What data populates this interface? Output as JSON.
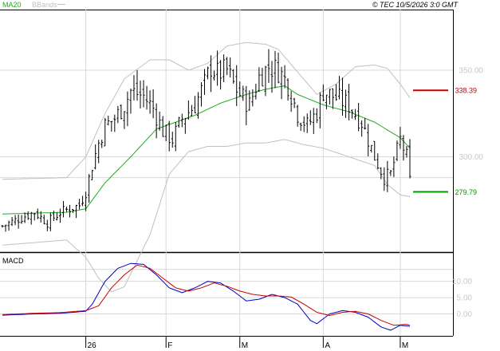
{
  "header": {
    "legend_ma": "MA20",
    "legend_bb": "BBands",
    "copyright": "© TEC 10/5/2026 3:0 GMT"
  },
  "colors": {
    "price_bar": "#000000",
    "ma20": "#22aa22",
    "bbands": "#c0c0c0",
    "macd_line": "#0000cc",
    "signal_line": "#cc0000",
    "resistance": "#cc0000",
    "support": "#009900",
    "grid": "#d8d8d8"
  },
  "chart_data": [
    {
      "type": "ohlc",
      "panel": "price",
      "y_ticks": [
        {
          "value": 300,
          "label": "300.00"
        },
        {
          "value": 350,
          "label": "350.00"
        }
      ],
      "ylim": [
        245,
        385
      ],
      "x_ticks": [
        {
          "index": 26,
          "label": "26"
        },
        {
          "index": 51,
          "label": "F"
        },
        {
          "index": 74,
          "label": "M"
        },
        {
          "index": 100,
          "label": "A"
        },
        {
          "index": 124,
          "label": "M"
        }
      ],
      "n_bars": 128,
      "levels": [
        {
          "name": "resistance",
          "value": 338.39,
          "label": "338.39"
        },
        {
          "name": "support",
          "value": 279.79,
          "label": "279.79"
        }
      ],
      "series": [
        {
          "name": "MA20",
          "anchors": [
            [
              0,
              267
            ],
            [
              20,
              268
            ],
            [
              26,
              270
            ],
            [
              32,
              285
            ],
            [
              40,
              300
            ],
            [
              48,
              316
            ],
            [
              54,
              320
            ],
            [
              60,
              324
            ],
            [
              68,
              331
            ],
            [
              76,
              336
            ],
            [
              82,
              339
            ],
            [
              88,
              341
            ],
            [
              92,
              336
            ],
            [
              100,
              330
            ],
            [
              108,
              326
            ],
            [
              116,
              320
            ],
            [
              124,
              311
            ],
            [
              127,
              305
            ]
          ]
        },
        {
          "name": "BBands upper",
          "anchors": [
            [
              0,
              287
            ],
            [
              20,
              288
            ],
            [
              26,
              300
            ],
            [
              32,
              325
            ],
            [
              38,
              345
            ],
            [
              46,
              356
            ],
            [
              52,
              356
            ],
            [
              58,
              350
            ],
            [
              64,
              354
            ],
            [
              70,
              364
            ],
            [
              76,
              366
            ],
            [
              82,
              365
            ],
            [
              86,
              362
            ],
            [
              92,
              349
            ],
            [
              98,
              336
            ],
            [
              104,
              342
            ],
            [
              110,
              352
            ],
            [
              116,
              353
            ],
            [
              120,
              351
            ],
            [
              124,
              342
            ],
            [
              127,
              334
            ]
          ]
        },
        {
          "name": "BBands lower",
          "anchors": [
            [
              0,
              249
            ],
            [
              20,
              252
            ],
            [
              26,
              242
            ],
            [
              30,
              230
            ],
            [
              34,
              222
            ],
            [
              38,
              225
            ],
            [
              46,
              255
            ],
            [
              52,
              290
            ],
            [
              58,
              303
            ],
            [
              64,
              306
            ],
            [
              70,
              306
            ],
            [
              76,
              308
            ],
            [
              82,
              308
            ],
            [
              88,
              310
            ],
            [
              94,
              307
            ],
            [
              100,
              305
            ],
            [
              108,
              300
            ],
            [
              116,
              295
            ],
            [
              120,
              284
            ],
            [
              124,
              278
            ],
            [
              127,
              277
            ]
          ]
        }
      ],
      "close_anchors": [
        [
          0,
          260
        ],
        [
          6,
          265
        ],
        [
          10,
          268
        ],
        [
          14,
          262
        ],
        [
          18,
          268
        ],
        [
          24,
          272
        ],
        [
          26,
          280
        ],
        [
          28,
          295
        ],
        [
          30,
          308
        ],
        [
          32,
          318
        ],
        [
          35,
          322
        ],
        [
          38,
          330
        ],
        [
          40,
          338
        ],
        [
          44,
          335
        ],
        [
          47,
          328
        ],
        [
          50,
          315
        ],
        [
          53,
          310
        ],
        [
          56,
          322
        ],
        [
          60,
          330
        ],
        [
          63,
          342
        ],
        [
          65,
          352
        ],
        [
          67,
          348
        ],
        [
          70,
          350
        ],
        [
          72,
          342
        ],
        [
          74,
          336
        ],
        [
          77,
          330
        ],
        [
          80,
          346
        ],
        [
          83,
          352
        ],
        [
          86,
          350
        ],
        [
          89,
          342
        ],
        [
          92,
          325
        ],
        [
          95,
          318
        ],
        [
          98,
          326
        ],
        [
          100,
          338
        ],
        [
          104,
          334
        ],
        [
          108,
          330
        ],
        [
          112,
          320
        ],
        [
          116,
          300
        ],
        [
          119,
          288
        ],
        [
          121,
          290
        ],
        [
          124,
          310
        ],
        [
          126,
          300
        ],
        [
          127,
          286
        ]
      ]
    },
    {
      "type": "line",
      "panel": "macd",
      "title": "MACD",
      "y_ticks": [
        {
          "value": 10,
          "label": "10.00"
        },
        {
          "value": 5,
          "label": "5.00"
        },
        {
          "value": 0,
          "label": "0.00"
        }
      ],
      "ylim": [
        -6,
        18
      ],
      "series": [
        {
          "name": "MACD",
          "anchors": [
            [
              0,
              -0.4
            ],
            [
              10,
              0.0
            ],
            [
              18,
              0.2
            ],
            [
              26,
              0.8
            ],
            [
              28,
              3
            ],
            [
              32,
              10
            ],
            [
              36,
              14
            ],
            [
              40,
              15.5
            ],
            [
              44,
              15.2
            ],
            [
              48,
              12
            ],
            [
              52,
              8
            ],
            [
              56,
              6.5
            ],
            [
              60,
              8
            ],
            [
              64,
              10
            ],
            [
              68,
              9.5
            ],
            [
              72,
              7
            ],
            [
              76,
              4
            ],
            [
              80,
              4.5
            ],
            [
              84,
              6
            ],
            [
              88,
              5
            ],
            [
              92,
              3
            ],
            [
              96,
              -2
            ],
            [
              98,
              -3
            ],
            [
              102,
              0
            ],
            [
              106,
              1
            ],
            [
              110,
              0.5
            ],
            [
              114,
              -1
            ],
            [
              118,
              -4
            ],
            [
              121,
              -5
            ],
            [
              124,
              -3.5
            ],
            [
              127,
              -3.8
            ]
          ]
        },
        {
          "name": "Signal",
          "anchors": [
            [
              0,
              -0.2
            ],
            [
              10,
              0.2
            ],
            [
              18,
              0.4
            ],
            [
              26,
              1.0
            ],
            [
              30,
              2.5
            ],
            [
              34,
              8
            ],
            [
              38,
              12
            ],
            [
              42,
              15
            ],
            [
              46,
              14
            ],
            [
              50,
              11
            ],
            [
              54,
              8
            ],
            [
              58,
              7
            ],
            [
              62,
              8
            ],
            [
              66,
              9.5
            ],
            [
              70,
              8.5
            ],
            [
              74,
              7
            ],
            [
              78,
              6
            ],
            [
              82,
              5.5
            ],
            [
              86,
              5.5
            ],
            [
              90,
              5.2
            ],
            [
              94,
              3
            ],
            [
              98,
              0.5
            ],
            [
              102,
              -0.5
            ],
            [
              106,
              0.5
            ],
            [
              110,
              0.8
            ],
            [
              114,
              0
            ],
            [
              118,
              -2
            ],
            [
              122,
              -3.5
            ],
            [
              126,
              -3.2
            ],
            [
              127,
              -3.5
            ]
          ]
        }
      ]
    }
  ]
}
